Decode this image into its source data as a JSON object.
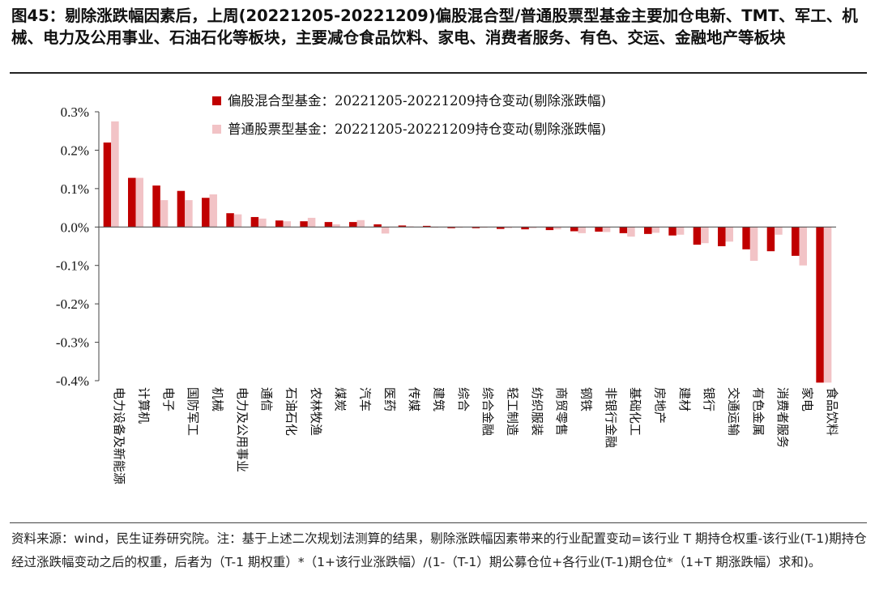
{
  "title": "图45：剔除涨跌幅因素后，上周(20221205-20221209)偏股混合型/普通股票型基金主要加仓电新、TMT、军工、机械、电力及公用事业、石油石化等板块，主要减仓食品饮料、家电、消费者服务、有色、交运、金融地产等板块",
  "source_note": "资料来源：wind，民生证券研究院。注：基于上述二次规划法测算的结果，剔除涨跌幅因素带来的行业配置变动=该行业 T 期持仓权重-该行业(T-1)期持仓经过涨跌幅变动之后的权重，后者为（T-1 期权重）*（1+该行业涨跌幅）/(1-（T-1）期公募仓位+各行业(T-1)期仓位*（1+T 期涨跌幅）求和)。",
  "colors": {
    "series1": "#c00000",
    "series2": "#f2c3c6",
    "axis": "#444444"
  },
  "chart_data": {
    "type": "bar",
    "ylim": [
      -0.4,
      0.3
    ],
    "yticks": [
      0.3,
      0.2,
      0.1,
      0.0,
      -0.1,
      -0.2,
      -0.3,
      -0.4
    ],
    "ytick_labels": [
      "0.3%",
      "0.2%",
      "0.1%",
      "0.0%",
      "-0.1%",
      "-0.2%",
      "-0.3%",
      "-0.4%"
    ],
    "legend_position": "top",
    "categories": [
      "电力设备及新能源",
      "计算机",
      "电子",
      "国防军工",
      "机械",
      "电力及公用事业",
      "通信",
      "石油石化",
      "农林牧渔",
      "煤炭",
      "汽车",
      "医药",
      "传媒",
      "建筑",
      "综合",
      "综合金融",
      "轻工制造",
      "纺织服装",
      "商贸零售",
      "钢铁",
      "非银行金融",
      "基础化工",
      "房地产",
      "建材",
      "银行",
      "交通运输",
      "有色金属",
      "消费者服务",
      "家电",
      "食品饮料"
    ],
    "series": [
      {
        "name": "偏股混合型基金：20221205-20221209持仓变动(剔除涨跌幅)",
        "values": [
          0.22,
          0.128,
          0.108,
          0.094,
          0.076,
          0.036,
          0.026,
          0.017,
          0.015,
          0.013,
          0.013,
          0.007,
          0.004,
          0.003,
          -0.003,
          -0.003,
          -0.005,
          -0.006,
          -0.008,
          -0.011,
          -0.012,
          -0.016,
          -0.018,
          -0.022,
          -0.046,
          -0.05,
          -0.058,
          -0.063,
          -0.075,
          -0.405
        ]
      },
      {
        "name": "普通股票型基金：20221205-20221209持仓变动(剔除涨跌幅)",
        "values": [
          0.275,
          0.128,
          0.07,
          0.07,
          0.085,
          0.033,
          0.022,
          0.015,
          0.024,
          0.007,
          0.018,
          -0.017,
          0.002,
          -0.001,
          -0.002,
          -0.002,
          -0.003,
          -0.003,
          -0.006,
          -0.016,
          -0.013,
          -0.025,
          -0.015,
          -0.02,
          -0.042,
          -0.038,
          -0.088,
          -0.02,
          -0.1,
          -0.405
        ]
      }
    ]
  }
}
